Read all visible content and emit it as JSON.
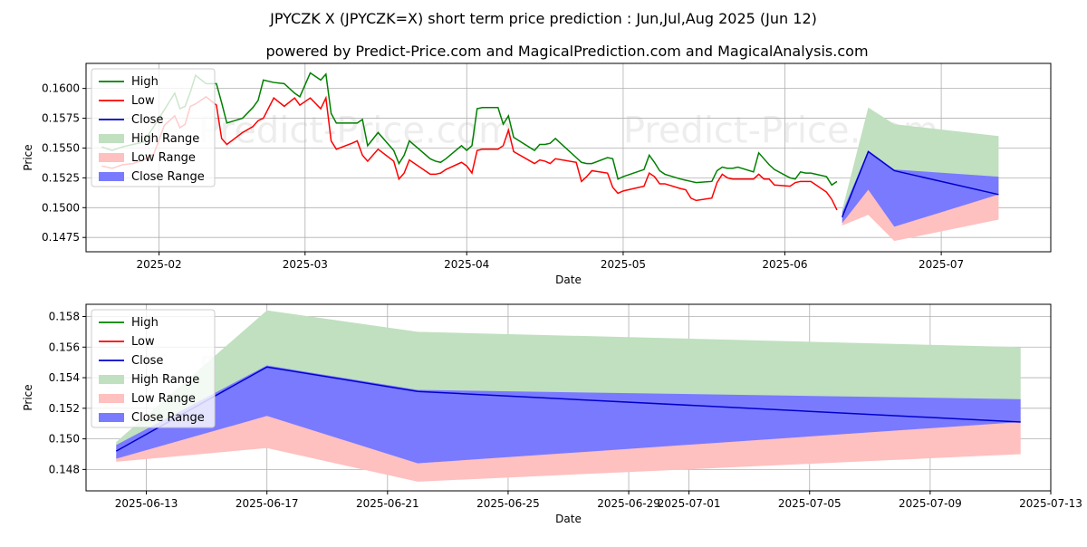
{
  "title": "JPYCZK X (JPYCZK=X) short term price prediction : Jun,Jul,Aug 2025 (Jun 12)",
  "subtitle": "powered by Predict-Price.com and MagicalPrediction.com and MagicalAnalysis.com",
  "watermark": "Predict-Price.com",
  "colors": {
    "high": "#008000",
    "low": "#ff0000",
    "close": "#0000cc",
    "high_range": "#c0e0c0",
    "low_range": "#ffc0c0",
    "close_range": "#7a7aff"
  },
  "chart_data": [
    {
      "type": "line",
      "xlabel": "Date",
      "ylabel": "Price",
      "xlim": [
        "2025-01-18",
        "2025-07-22"
      ],
      "ylim": [
        0.1463,
        0.1621
      ],
      "grid": true,
      "legend_position": "top-left",
      "legend": [
        "High",
        "Low",
        "Close",
        "High Range",
        "Low Range",
        "Close Range"
      ],
      "x_ticks": [
        {
          "date": "2025-02-01",
          "label": "2025-02"
        },
        {
          "date": "2025-03-01",
          "label": "2025-03"
        },
        {
          "date": "2025-04-01",
          "label": "2025-04"
        },
        {
          "date": "2025-05-01",
          "label": "2025-05"
        },
        {
          "date": "2025-06-01",
          "label": "2025-06"
        },
        {
          "date": "2025-07-01",
          "label": "2025-07"
        }
      ],
      "y_ticks": [
        "0.1475",
        "0.1500",
        "0.1525",
        "0.1550",
        "0.1575",
        "0.1600"
      ],
      "history": {
        "dates": [
          "2025-01-21",
          "2025-01-23",
          "2025-01-25",
          "2025-01-27",
          "2025-01-29",
          "2025-01-31",
          "2025-02-02",
          "2025-02-04",
          "2025-02-05",
          "2025-02-06",
          "2025-02-07",
          "2025-02-08",
          "2025-02-10",
          "2025-02-12",
          "2025-02-13",
          "2025-02-14",
          "2025-02-17",
          "2025-02-19",
          "2025-02-20",
          "2025-02-21",
          "2025-02-23",
          "2025-02-25",
          "2025-02-27",
          "2025-02-28",
          "2025-03-02",
          "2025-03-04",
          "2025-03-05",
          "2025-03-06",
          "2025-03-07",
          "2025-03-10",
          "2025-03-11",
          "2025-03-12",
          "2025-03-13",
          "2025-03-15",
          "2025-03-18",
          "2025-03-19",
          "2025-03-20",
          "2025-03-21",
          "2025-03-25",
          "2025-03-26",
          "2025-03-27",
          "2025-03-28",
          "2025-03-31",
          "2025-04-01",
          "2025-04-02",
          "2025-04-03",
          "2025-04-04",
          "2025-04-07",
          "2025-04-08",
          "2025-04-09",
          "2025-04-10",
          "2025-04-14",
          "2025-04-15",
          "2025-04-16",
          "2025-04-17",
          "2025-04-18",
          "2025-04-22",
          "2025-04-23",
          "2025-04-24",
          "2025-04-25",
          "2025-04-28",
          "2025-04-29",
          "2025-04-30",
          "2025-05-01",
          "2025-05-05",
          "2025-05-06",
          "2025-05-07",
          "2025-05-08",
          "2025-05-09",
          "2025-05-12",
          "2025-05-13",
          "2025-05-14",
          "2025-05-15",
          "2025-05-18",
          "2025-05-19",
          "2025-05-20",
          "2025-05-21",
          "2025-05-22",
          "2025-05-23",
          "2025-05-26",
          "2025-05-27",
          "2025-05-28",
          "2025-05-29",
          "2025-05-30",
          "2025-06-02",
          "2025-06-03",
          "2025-06-04",
          "2025-06-05",
          "2025-06-06",
          "2025-06-09",
          "2025-06-10",
          "2025-06-11"
        ],
        "high": [
          0.1551,
          0.1548,
          0.1551,
          0.1553,
          0.1555,
          0.1568,
          0.1582,
          0.1596,
          0.1583,
          0.1585,
          0.1597,
          0.1611,
          0.1604,
          0.1604,
          0.1588,
          0.1571,
          0.1575,
          0.1584,
          0.159,
          0.1607,
          0.1605,
          0.1604,
          0.1596,
          0.1593,
          0.1613,
          0.1607,
          0.1612,
          0.1579,
          0.1571,
          0.1571,
          0.1571,
          0.1574,
          0.1552,
          0.1563,
          0.1548,
          0.1537,
          0.1544,
          0.1556,
          0.1541,
          0.1539,
          0.1538,
          0.1541,
          0.1552,
          0.1548,
          0.1552,
          0.1583,
          0.1584,
          0.1584,
          0.157,
          0.1577,
          0.1559,
          0.1548,
          0.1553,
          0.1553,
          0.1554,
          0.1558,
          0.1542,
          0.1538,
          0.1537,
          0.1537,
          0.1542,
          0.1541,
          0.1524,
          0.1526,
          0.1532,
          0.1544,
          0.1538,
          0.1531,
          0.1528,
          0.1524,
          0.1523,
          0.1522,
          0.1521,
          0.1522,
          0.1531,
          0.1534,
          0.1533,
          0.1533,
          0.1534,
          0.153,
          0.1546,
          0.1541,
          0.1536,
          0.1532,
          0.1525,
          0.1524,
          0.153,
          0.1529,
          0.1529,
          0.1526,
          0.1519,
          0.1522
        ],
        "low": [
          0.1535,
          0.1533,
          0.1536,
          0.1537,
          0.154,
          0.1545,
          0.1569,
          0.1577,
          0.1567,
          0.157,
          0.1585,
          0.1587,
          0.1593,
          0.1586,
          0.1558,
          0.1553,
          0.1563,
          0.1568,
          0.1573,
          0.1575,
          0.1592,
          0.1585,
          0.1592,
          0.1586,
          0.1592,
          0.1583,
          0.1592,
          0.1556,
          0.1549,
          0.1554,
          0.1556,
          0.1544,
          0.1539,
          0.1549,
          0.1539,
          0.1524,
          0.1529,
          0.154,
          0.1528,
          0.1528,
          0.1529,
          0.1532,
          0.1538,
          0.1535,
          0.1529,
          0.1548,
          0.1549,
          0.1549,
          0.1552,
          0.1565,
          0.1547,
          0.1537,
          0.154,
          0.1539,
          0.1537,
          0.1541,
          0.1538,
          0.1522,
          0.1526,
          0.1531,
          0.1529,
          0.1517,
          0.1512,
          0.1514,
          0.1518,
          0.1529,
          0.1526,
          0.152,
          0.152,
          0.1516,
          0.1515,
          0.1508,
          0.1506,
          0.1508,
          0.1521,
          0.1528,
          0.1525,
          0.1524,
          0.1524,
          0.1524,
          0.1528,
          0.1524,
          0.1524,
          0.1519,
          0.1518,
          0.1521,
          0.1522,
          0.1522,
          0.1522,
          0.1513,
          0.1507,
          0.1498
        ]
      },
      "forecast": {
        "dates": [
          "2025-06-12",
          "2025-06-17",
          "2025-06-22",
          "2025-07-12"
        ],
        "high_range_upper": [
          0.1498,
          0.1584,
          0.157,
          0.156
        ],
        "high_range_lower": [
          0.1493,
          0.154,
          0.1531,
          0.1526
        ],
        "low_range_upper": [
          0.149,
          0.1518,
          0.1484,
          0.1512
        ],
        "low_range_lower": [
          0.1485,
          0.1494,
          0.1472,
          0.149
        ],
        "close_range_upper": [
          0.1496,
          0.1548,
          0.1532,
          0.1526
        ],
        "close_range_lower": [
          0.1487,
          0.1515,
          0.1484,
          0.1511
        ],
        "close": [
          0.1492,
          0.1547,
          0.1531,
          0.1511
        ]
      }
    },
    {
      "type": "line",
      "xlabel": "Date",
      "ylabel": "Price",
      "xlim": [
        "2025-06-11",
        "2025-07-13"
      ],
      "ylim": [
        0.1466,
        0.1588
      ],
      "grid": true,
      "legend_position": "top-left",
      "legend": [
        "High",
        "Low",
        "Close",
        "High Range",
        "Low Range",
        "Close Range"
      ],
      "x_ticks": [
        {
          "date": "2025-06-13",
          "label": "2025-06-13"
        },
        {
          "date": "2025-06-17",
          "label": "2025-06-17"
        },
        {
          "date": "2025-06-21",
          "label": "2025-06-21"
        },
        {
          "date": "2025-06-25",
          "label": "2025-06-25"
        },
        {
          "date": "2025-06-29",
          "label": "2025-06-29"
        },
        {
          "date": "2025-07-01",
          "label": "2025-07-01"
        },
        {
          "date": "2025-07-05",
          "label": "2025-07-05"
        },
        {
          "date": "2025-07-09",
          "label": "2025-07-09"
        },
        {
          "date": "2025-07-13",
          "label": "2025-07-13"
        }
      ],
      "y_ticks": [
        "0.148",
        "0.150",
        "0.152",
        "0.154",
        "0.156",
        "0.158"
      ],
      "forecast": {
        "dates": [
          "2025-06-12",
          "2025-06-17",
          "2025-06-22",
          "2025-07-12"
        ],
        "high_range_upper": [
          0.1498,
          0.1584,
          0.157,
          0.156
        ],
        "high_range_lower": [
          0.1493,
          0.154,
          0.1531,
          0.1526
        ],
        "low_range_upper": [
          0.149,
          0.1518,
          0.1484,
          0.1512
        ],
        "low_range_lower": [
          0.1485,
          0.1494,
          0.1472,
          0.149
        ],
        "close_range_upper": [
          0.1496,
          0.1548,
          0.1532,
          0.1526
        ],
        "close_range_lower": [
          0.1487,
          0.1515,
          0.1484,
          0.1511
        ],
        "close": [
          0.1492,
          0.1547,
          0.1531,
          0.1511
        ]
      }
    }
  ]
}
